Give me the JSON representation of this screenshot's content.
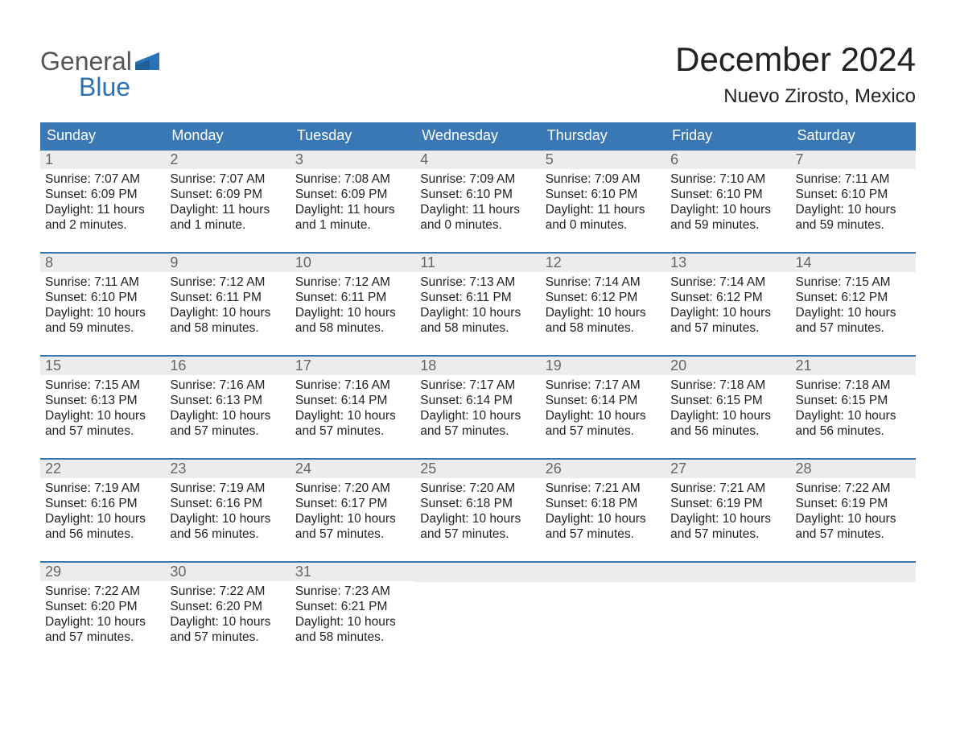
{
  "logo": {
    "line1": "General",
    "line2": "Blue",
    "shape_color": "#2a73b8",
    "line1_color": "#555555"
  },
  "title": "December 2024",
  "subtitle": "Nuevo Zirosto, Mexico",
  "colors": {
    "header_bg": "#3a78b5",
    "header_text": "#ffffff",
    "daynum_bg": "#ececec",
    "daynum_text": "#666666",
    "body_text": "#222222",
    "border": "#3a78b5",
    "page_bg": "#ffffff"
  },
  "fonts": {
    "family": "Arial",
    "title_size_pt": 32,
    "subtitle_size_pt": 18,
    "dayheader_size_pt": 14,
    "daynum_size_pt": 14,
    "body_size_pt": 12
  },
  "day_headers": [
    "Sunday",
    "Monday",
    "Tuesday",
    "Wednesday",
    "Thursday",
    "Friday",
    "Saturday"
  ],
  "weeks": [
    [
      {
        "n": "1",
        "sr": "7:07 AM",
        "ss": "6:09 PM",
        "dl": "11 hours and 2 minutes."
      },
      {
        "n": "2",
        "sr": "7:07 AM",
        "ss": "6:09 PM",
        "dl": "11 hours and 1 minute."
      },
      {
        "n": "3",
        "sr": "7:08 AM",
        "ss": "6:09 PM",
        "dl": "11 hours and 1 minute."
      },
      {
        "n": "4",
        "sr": "7:09 AM",
        "ss": "6:10 PM",
        "dl": "11 hours and 0 minutes."
      },
      {
        "n": "5",
        "sr": "7:09 AM",
        "ss": "6:10 PM",
        "dl": "11 hours and 0 minutes."
      },
      {
        "n": "6",
        "sr": "7:10 AM",
        "ss": "6:10 PM",
        "dl": "10 hours and 59 minutes."
      },
      {
        "n": "7",
        "sr": "7:11 AM",
        "ss": "6:10 PM",
        "dl": "10 hours and 59 minutes."
      }
    ],
    [
      {
        "n": "8",
        "sr": "7:11 AM",
        "ss": "6:10 PM",
        "dl": "10 hours and 59 minutes."
      },
      {
        "n": "9",
        "sr": "7:12 AM",
        "ss": "6:11 PM",
        "dl": "10 hours and 58 minutes."
      },
      {
        "n": "10",
        "sr": "7:12 AM",
        "ss": "6:11 PM",
        "dl": "10 hours and 58 minutes."
      },
      {
        "n": "11",
        "sr": "7:13 AM",
        "ss": "6:11 PM",
        "dl": "10 hours and 58 minutes."
      },
      {
        "n": "12",
        "sr": "7:14 AM",
        "ss": "6:12 PM",
        "dl": "10 hours and 58 minutes."
      },
      {
        "n": "13",
        "sr": "7:14 AM",
        "ss": "6:12 PM",
        "dl": "10 hours and 57 minutes."
      },
      {
        "n": "14",
        "sr": "7:15 AM",
        "ss": "6:12 PM",
        "dl": "10 hours and 57 minutes."
      }
    ],
    [
      {
        "n": "15",
        "sr": "7:15 AM",
        "ss": "6:13 PM",
        "dl": "10 hours and 57 minutes."
      },
      {
        "n": "16",
        "sr": "7:16 AM",
        "ss": "6:13 PM",
        "dl": "10 hours and 57 minutes."
      },
      {
        "n": "17",
        "sr": "7:16 AM",
        "ss": "6:14 PM",
        "dl": "10 hours and 57 minutes."
      },
      {
        "n": "18",
        "sr": "7:17 AM",
        "ss": "6:14 PM",
        "dl": "10 hours and 57 minutes."
      },
      {
        "n": "19",
        "sr": "7:17 AM",
        "ss": "6:14 PM",
        "dl": "10 hours and 57 minutes."
      },
      {
        "n": "20",
        "sr": "7:18 AM",
        "ss": "6:15 PM",
        "dl": "10 hours and 56 minutes."
      },
      {
        "n": "21",
        "sr": "7:18 AM",
        "ss": "6:15 PM",
        "dl": "10 hours and 56 minutes."
      }
    ],
    [
      {
        "n": "22",
        "sr": "7:19 AM",
        "ss": "6:16 PM",
        "dl": "10 hours and 56 minutes."
      },
      {
        "n": "23",
        "sr": "7:19 AM",
        "ss": "6:16 PM",
        "dl": "10 hours and 56 minutes."
      },
      {
        "n": "24",
        "sr": "7:20 AM",
        "ss": "6:17 PM",
        "dl": "10 hours and 57 minutes."
      },
      {
        "n": "25",
        "sr": "7:20 AM",
        "ss": "6:18 PM",
        "dl": "10 hours and 57 minutes."
      },
      {
        "n": "26",
        "sr": "7:21 AM",
        "ss": "6:18 PM",
        "dl": "10 hours and 57 minutes."
      },
      {
        "n": "27",
        "sr": "7:21 AM",
        "ss": "6:19 PM",
        "dl": "10 hours and 57 minutes."
      },
      {
        "n": "28",
        "sr": "7:22 AM",
        "ss": "6:19 PM",
        "dl": "10 hours and 57 minutes."
      }
    ],
    [
      {
        "n": "29",
        "sr": "7:22 AM",
        "ss": "6:20 PM",
        "dl": "10 hours and 57 minutes."
      },
      {
        "n": "30",
        "sr": "7:22 AM",
        "ss": "6:20 PM",
        "dl": "10 hours and 57 minutes."
      },
      {
        "n": "31",
        "sr": "7:23 AM",
        "ss": "6:21 PM",
        "dl": "10 hours and 58 minutes."
      },
      null,
      null,
      null,
      null
    ]
  ],
  "labels": {
    "sunrise_prefix": "Sunrise: ",
    "sunset_prefix": "Sunset: ",
    "daylight_prefix": "Daylight: "
  }
}
